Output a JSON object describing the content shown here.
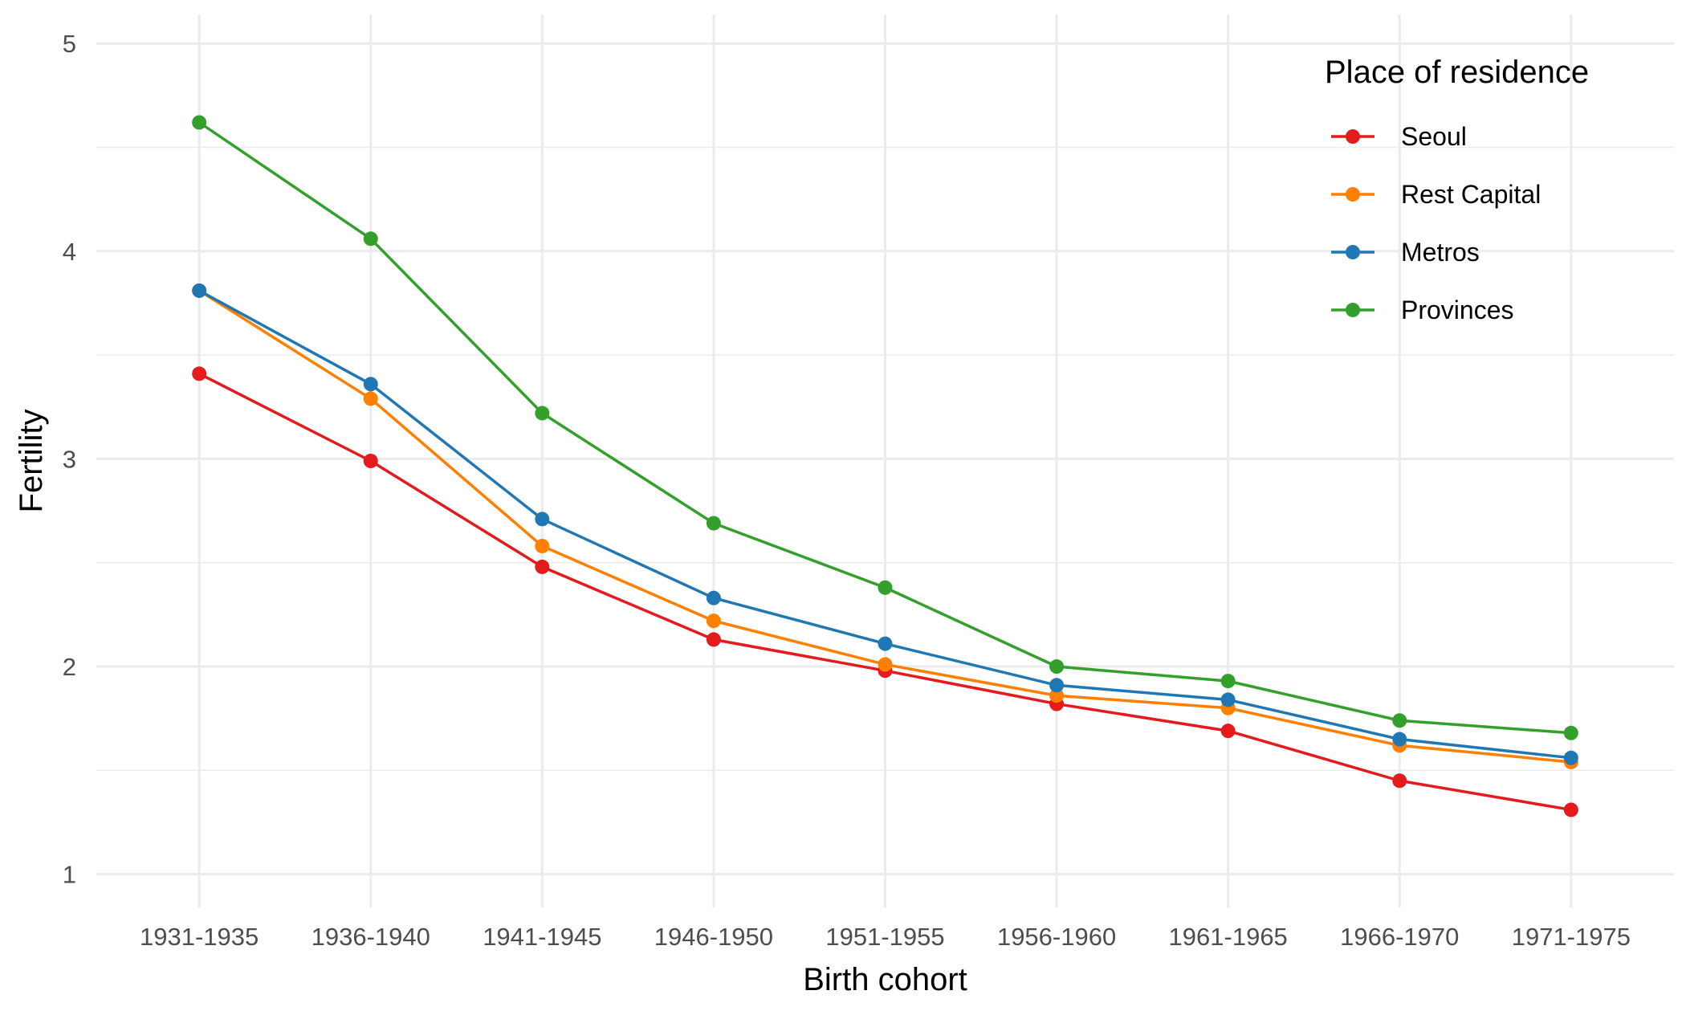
{
  "chart_data": {
    "type": "line",
    "xlabel": "Birth cohort",
    "ylabel": "Fertility",
    "categories": [
      "1931-1935",
      "1936-1940",
      "1941-1945",
      "1946-1950",
      "1951-1955",
      "1956-1960",
      "1961-1965",
      "1966-1970",
      "1971-1975"
    ],
    "ylim": [
      0.84,
      5.14
    ],
    "yticks": [
      1,
      2,
      3,
      4,
      5
    ],
    "grid": true,
    "legend": {
      "title": "Place of residence",
      "position": "top-right"
    },
    "series": [
      {
        "name": "Seoul",
        "color": "#e41a1c",
        "values": [
          3.41,
          2.99,
          2.48,
          2.13,
          1.98,
          1.82,
          1.69,
          1.45,
          1.31
        ]
      },
      {
        "name": "Rest Capital",
        "color": "#ff7f00",
        "values": [
          3.81,
          3.29,
          2.58,
          2.22,
          2.01,
          1.86,
          1.8,
          1.62,
          1.54
        ]
      },
      {
        "name": "Metros",
        "color": "#1f78b4",
        "values": [
          3.81,
          3.36,
          2.71,
          2.33,
          2.11,
          1.91,
          1.84,
          1.65,
          1.56
        ]
      },
      {
        "name": "Provinces",
        "color": "#33a02c",
        "values": [
          4.62,
          4.06,
          3.22,
          2.69,
          2.38,
          2.0,
          1.93,
          1.74,
          1.68
        ]
      }
    ]
  }
}
